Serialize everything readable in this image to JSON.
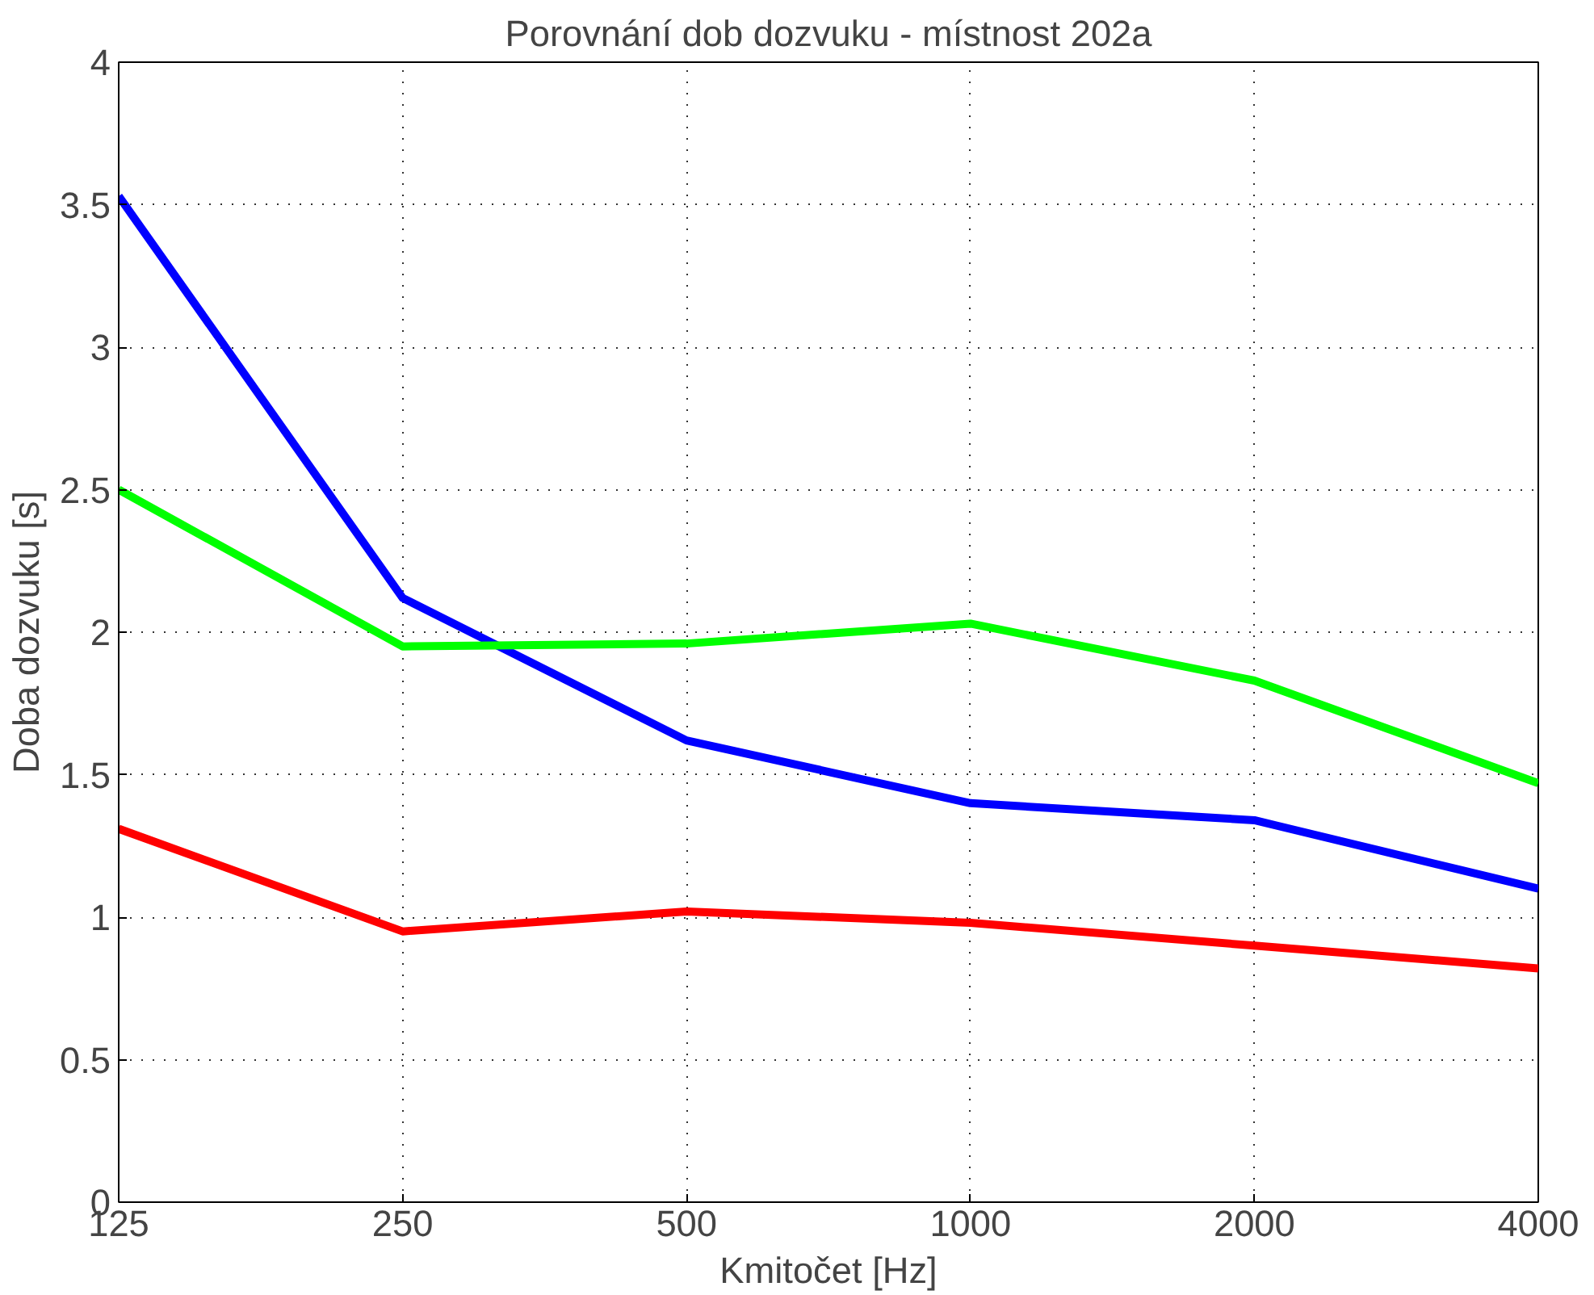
{
  "chart_data": {
    "type": "line",
    "title": "Porovnání dob dozvuku - místnost 202a",
    "xlabel": "Kmitočet [Hz]",
    "ylabel": "Doba dozvuku [s]",
    "categories": [
      "125",
      "250",
      "500",
      "1000",
      "2000",
      "4000"
    ],
    "series": [
      {
        "color": "#0000ff",
        "values": [
          3.53,
          2.12,
          1.62,
          1.4,
          1.34,
          1.1
        ]
      },
      {
        "color": "#00ff00",
        "values": [
          2.5,
          1.95,
          1.96,
          2.03,
          1.83,
          1.47
        ]
      },
      {
        "color": "#ff0000",
        "values": [
          1.31,
          0.95,
          1.02,
          0.98,
          0.9,
          0.82
        ]
      }
    ],
    "ylim": [
      0,
      4
    ],
    "yticks": [
      0,
      0.5,
      1,
      1.5,
      2,
      2.5,
      3,
      3.5,
      4
    ],
    "grid": true,
    "line_style": "solid"
  }
}
